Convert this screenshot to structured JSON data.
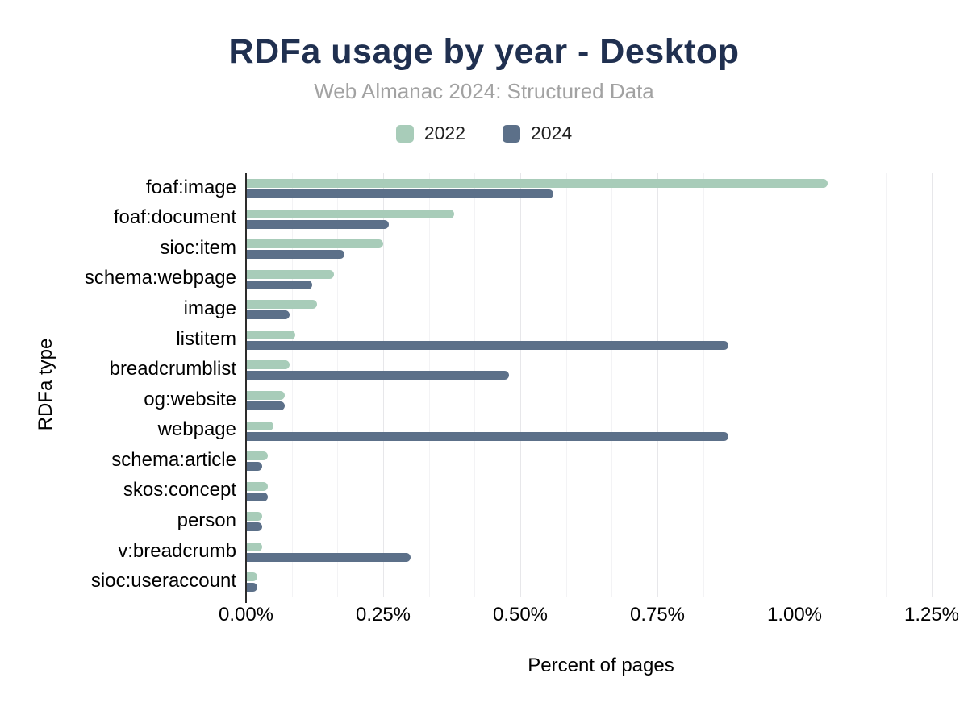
{
  "page": {
    "title": "RDFa usage by year - Desktop",
    "subtitle": "Web Almanac 2024: Structured Data"
  },
  "colors": {
    "title": "#203050",
    "subtitle": "#a2a2a2",
    "series_2022": "#a8ccb9",
    "series_2024": "#5c7089",
    "axis_baseline": "#2d2d2d",
    "gridline_major": "#e7e7ea",
    "gridline_minor": "#f3f3f5"
  },
  "legend": [
    {
      "label": "2022",
      "color": "#a8ccb9"
    },
    {
      "label": "2024",
      "color": "#5c7089"
    }
  ],
  "chart_data": {
    "type": "bar",
    "orientation": "horizontal",
    "title": "RDFa usage by year - Desktop",
    "subtitle": "Web Almanac 2024: Structured Data",
    "xlabel": "Percent of pages",
    "ylabel": "RDFa type",
    "units": "%",
    "xlim": [
      0,
      1.294
    ],
    "grid": "vertical gridlines on; minor gridlines at 1/3 of each 0.25% interval",
    "legend_position": "top-center",
    "x_ticks": [
      {
        "label": "0.00%",
        "value": 0
      },
      {
        "label": "0.25%",
        "value": 0.25
      },
      {
        "label": "0.50%",
        "value": 0.5
      },
      {
        "label": "0.75%",
        "value": 0.75
      },
      {
        "label": "1.00%",
        "value": 1.0
      },
      {
        "label": "1.25%",
        "value": 1.25
      }
    ],
    "categories": [
      "foaf:image",
      "foaf:document",
      "sioc:item",
      "schema:webpage",
      "image",
      "listitem",
      "breadcrumblist",
      "og:website",
      "webpage",
      "schema:article",
      "skos:concept",
      "person",
      "v:breadcrumb",
      "sioc:useraccount"
    ],
    "series": [
      {
        "name": "2022",
        "color": "#a8ccb9",
        "values": [
          1.06,
          0.38,
          0.25,
          0.16,
          0.13,
          0.09,
          0.08,
          0.07,
          0.05,
          0.04,
          0.04,
          0.03,
          0.03,
          0.02
        ]
      },
      {
        "name": "2024",
        "color": "#5c7089",
        "values": [
          0.56,
          0.26,
          0.18,
          0.12,
          0.08,
          0.88,
          0.48,
          0.07,
          0.88,
          0.03,
          0.04,
          0.03,
          0.3,
          0.02
        ]
      }
    ]
  }
}
